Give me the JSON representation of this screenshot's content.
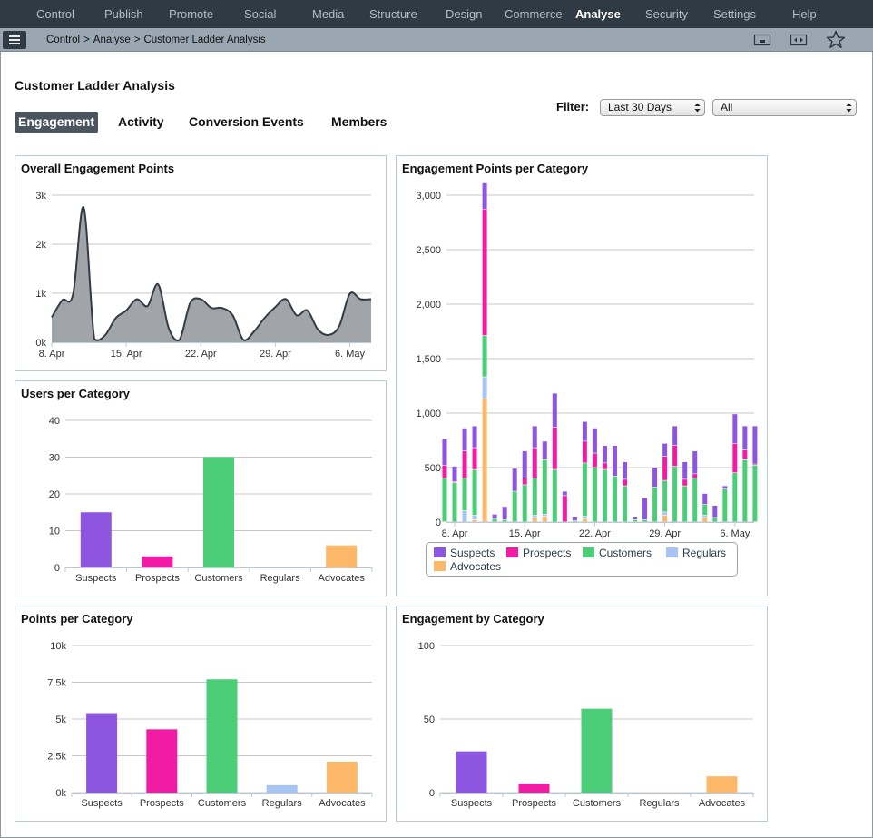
{
  "nav": {
    "items": [
      {
        "label": "Control",
        "active": false
      },
      {
        "label": "Publish",
        "active": false
      },
      {
        "label": "Promote",
        "active": false
      },
      {
        "label": "Social",
        "active": false
      },
      {
        "label": "Media",
        "active": false
      },
      {
        "label": "Structure",
        "active": false
      },
      {
        "label": "Design",
        "active": false
      },
      {
        "label": "Commerce",
        "active": false
      },
      {
        "label": "Analyse",
        "active": true
      },
      {
        "label": "Security",
        "active": false
      },
      {
        "label": "Settings",
        "active": false
      },
      {
        "label": "Help",
        "active": false
      }
    ]
  },
  "breadcrumb": [
    "Control",
    "Analyse",
    "Customer Ladder Analysis"
  ],
  "breadcrumb_sep": ">",
  "page_title": "Customer Ladder Analysis",
  "tabs": [
    {
      "label": "Engagement",
      "active": true
    },
    {
      "label": "Activity",
      "active": false
    },
    {
      "label": "Conversion Events",
      "active": false
    },
    {
      "label": "Members",
      "active": false
    }
  ],
  "filter": {
    "label": "Filter:",
    "period": "Last 30 Days",
    "segment": "All"
  },
  "colors": {
    "Suspects": "#8e55e0",
    "Prospects": "#f21ba3",
    "Customers": "#4ccd78",
    "Regulars": "#a8c4f2",
    "Advocates": "#fdb768",
    "area_fill": "#a1a4a9",
    "area_line": "#333b45",
    "nav_bg": "#2f3a44"
  },
  "icons": [
    "menu-icon",
    "monitor-icon",
    "fit-width-icon",
    "star-icon"
  ],
  "charts": {
    "overall": {
      "title": "Overall Engagement Points"
    },
    "per_category": {
      "title": "Engagement Points per Category"
    },
    "users": {
      "title": "Users per Category"
    },
    "points": {
      "title": "Points per Category"
    },
    "engagement": {
      "title": "Engagement by Category"
    }
  },
  "chart_data": [
    {
      "id": "overall",
      "type": "area",
      "title": "Overall Engagement Points",
      "x": [
        "2024-04-07",
        "2024-04-08",
        "2024-04-09",
        "2024-04-10",
        "2024-04-11",
        "2024-04-12",
        "2024-04-13",
        "2024-04-14",
        "2024-04-15",
        "2024-04-16",
        "2024-04-17",
        "2024-04-18",
        "2024-04-19",
        "2024-04-20",
        "2024-04-21",
        "2024-04-22",
        "2024-04-23",
        "2024-04-24",
        "2024-04-25",
        "2024-04-26",
        "2024-04-27",
        "2024-04-28",
        "2024-04-29",
        "2024-04-30",
        "2024-05-01",
        "2024-05-02",
        "2024-05-03",
        "2024-05-04",
        "2024-05-05",
        "2024-05-06",
        "2024-05-07",
        "2024-05-08"
      ],
      "values": [
        760,
        510,
        860,
        980,
        2750,
        70,
        140,
        490,
        650,
        880,
        740,
        1180,
        280,
        50,
        800,
        880,
        700,
        700,
        550,
        50,
        220,
        500,
        720,
        880,
        550,
        650,
        260,
        150,
        330,
        990,
        880,
        880
      ],
      "x_ticks": [
        "8. Apr",
        "15. Apr",
        "22. Apr",
        "29. Apr",
        "6. May"
      ],
      "y_ticks": [
        "0k",
        "1k",
        "2k",
        "3k"
      ],
      "ylim": [
        0,
        3000
      ]
    },
    {
      "id": "per_category",
      "type": "bar",
      "stacked": true,
      "title": "Engagement Points per Category",
      "categories": [
        "2024-04-07",
        "2024-04-08",
        "2024-04-09",
        "2024-04-10",
        "2024-04-11",
        "2024-04-12",
        "2024-04-13",
        "2024-04-14",
        "2024-04-15",
        "2024-04-16",
        "2024-04-17",
        "2024-04-18",
        "2024-04-19",
        "2024-04-20",
        "2024-04-21",
        "2024-04-22",
        "2024-04-23",
        "2024-04-24",
        "2024-04-25",
        "2024-04-26",
        "2024-04-27",
        "2024-04-28",
        "2024-04-29",
        "2024-04-30",
        "2024-05-01",
        "2024-05-02",
        "2024-05-03",
        "2024-05-04",
        "2024-05-05",
        "2024-05-06",
        "2024-05-07",
        "2024-05-08"
      ],
      "series": [
        {
          "name": "Advocates",
          "values": [
            0,
            0,
            0,
            20,
            1130,
            0,
            0,
            0,
            0,
            40,
            50,
            0,
            0,
            0,
            30,
            0,
            0,
            0,
            0,
            0,
            0,
            0,
            60,
            0,
            0,
            0,
            40,
            0,
            0,
            0,
            0,
            0
          ]
        },
        {
          "name": "Regulars",
          "values": [
            0,
            0,
            100,
            40,
            200,
            0,
            0,
            0,
            0,
            20,
            20,
            0,
            0,
            0,
            20,
            0,
            0,
            0,
            0,
            0,
            0,
            0,
            30,
            0,
            0,
            0,
            20,
            0,
            0,
            0,
            0,
            0
          ]
        },
        {
          "name": "Customers",
          "values": [
            400,
            360,
            300,
            420,
            380,
            30,
            20,
            280,
            340,
            340,
            500,
            480,
            0,
            10,
            490,
            500,
            480,
            420,
            330,
            20,
            20,
            320,
            290,
            510,
            330,
            400,
            100,
            40,
            300,
            450,
            570,
            520
          ]
        },
        {
          "name": "Prospects",
          "values": [
            120,
            10,
            250,
            200,
            1160,
            0,
            0,
            0,
            60,
            280,
            0,
            390,
            240,
            0,
            200,
            130,
            60,
            0,
            60,
            0,
            0,
            0,
            220,
            190,
            60,
            40,
            0,
            0,
            0,
            270,
            90,
            10
          ]
        },
        {
          "name": "Suspects",
          "values": [
            240,
            140,
            210,
            200,
            240,
            40,
            120,
            210,
            250,
            200,
            170,
            310,
            40,
            40,
            180,
            230,
            160,
            280,
            160,
            30,
            200,
            180,
            120,
            180,
            160,
            210,
            100,
            110,
            30,
            270,
            220,
            350
          ]
        }
      ],
      "x_ticks": [
        "8. Apr",
        "15. Apr",
        "22. Apr",
        "29. Apr",
        "6. May"
      ],
      "y_ticks": [
        "0",
        "500",
        "1,000",
        "1,500",
        "2,000",
        "2,500",
        "3,000"
      ],
      "ylim": [
        0,
        3000
      ],
      "legend": [
        "Suspects",
        "Prospects",
        "Customers",
        "Regulars",
        "Advocates"
      ],
      "legend_position": "bottom"
    },
    {
      "id": "users",
      "type": "bar",
      "title": "Users per Category",
      "categories": [
        "Suspects",
        "Prospects",
        "Customers",
        "Regulars",
        "Advocates"
      ],
      "values": [
        15,
        3,
        30,
        0,
        6
      ],
      "y_ticks": [
        "0",
        "10",
        "20",
        "30",
        "40"
      ],
      "ylim": [
        0,
        40
      ]
    },
    {
      "id": "points",
      "type": "bar",
      "title": "Points per Category",
      "categories": [
        "Suspects",
        "Prospects",
        "Customers",
        "Regulars",
        "Advocates"
      ],
      "values": [
        5400,
        4300,
        7700,
        500,
        2100
      ],
      "y_ticks": [
        "0k",
        "2.5k",
        "5k",
        "7.5k",
        "10k"
      ],
      "ylim": [
        0,
        10000
      ]
    },
    {
      "id": "engagement",
      "type": "bar",
      "title": "Engagement by Category",
      "categories": [
        "Suspects",
        "Prospects",
        "Customers",
        "Regulars",
        "Advocates"
      ],
      "values": [
        28,
        6,
        57,
        0,
        11
      ],
      "y_ticks": [
        "0",
        "50",
        "100"
      ],
      "ylim": [
        0,
        100
      ]
    }
  ]
}
